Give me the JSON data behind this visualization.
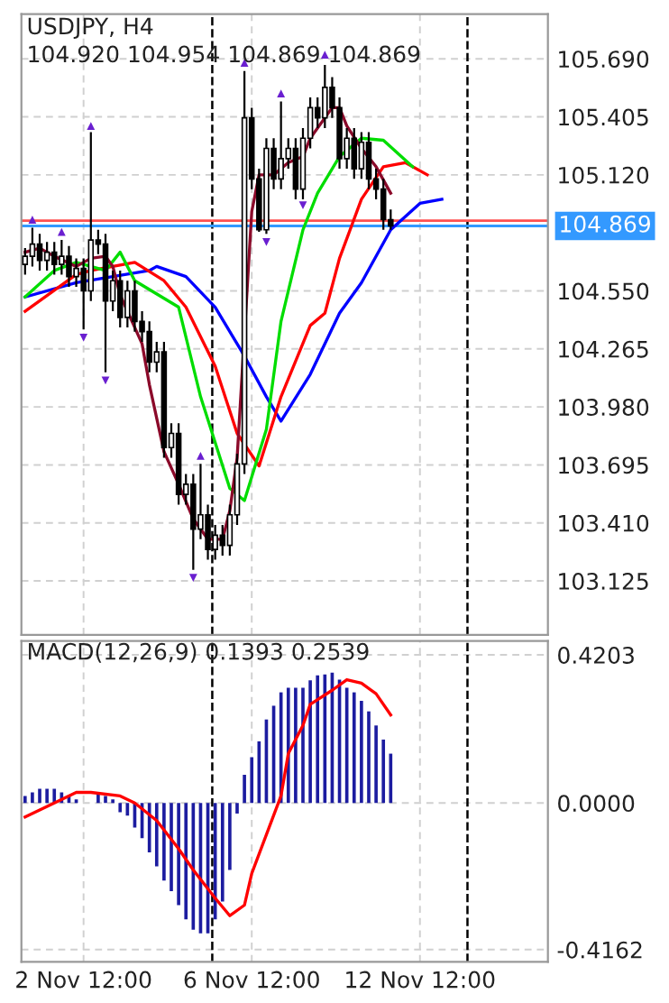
{
  "chart_data": [
    {
      "type": "candlestick",
      "title": "USDJPY, H4",
      "subtitle": "104.920 104.954 104.869 104.869",
      "color": "#000000",
      "categories": [
        null,
        null,
        null,
        null,
        null,
        null,
        null,
        null,
        null,
        null,
        null,
        null,
        null,
        null,
        null,
        null,
        null,
        null,
        null,
        null,
        null,
        null,
        null,
        null,
        null,
        null,
        null,
        null,
        null,
        null,
        null,
        null,
        null,
        null,
        null,
        null,
        null,
        null,
        null,
        null,
        null,
        null,
        null,
        null,
        null,
        null,
        null,
        null,
        null,
        null,
        null,
        null,
        null,
        null,
        null,
        null,
        null,
        null,
        null,
        null,
        null,
        null,
        null,
        null,
        null,
        null,
        null,
        null,
        null,
        null,
        null,
        null
      ],
      "ohlc": [
        [
          104.68,
          104.76,
          104.63,
          104.72
        ],
        [
          104.72,
          104.86,
          104.67,
          104.78
        ],
        [
          104.78,
          104.83,
          104.65,
          104.7
        ],
        [
          104.7,
          104.79,
          104.65,
          104.74
        ],
        [
          104.74,
          104.79,
          104.63,
          104.68
        ],
        [
          104.68,
          104.8,
          104.63,
          104.72
        ],
        [
          104.72,
          104.77,
          104.57,
          104.62
        ],
        [
          104.62,
          104.71,
          104.57,
          104.66
        ],
        [
          104.66,
          104.71,
          104.36,
          104.55
        ],
        [
          104.55,
          105.33,
          104.5,
          104.8
        ],
        [
          104.8,
          104.85,
          104.73,
          104.78
        ],
        [
          104.78,
          104.83,
          104.15,
          104.5
        ],
        [
          104.5,
          104.65,
          104.45,
          104.6
        ],
        [
          104.6,
          104.65,
          104.37,
          104.42
        ],
        [
          104.42,
          104.6,
          104.37,
          104.55
        ],
        [
          104.55,
          104.6,
          104.35,
          104.4
        ],
        [
          104.4,
          104.45,
          104.3,
          104.35
        ],
        [
          104.35,
          104.4,
          104.15,
          104.2
        ],
        [
          104.2,
          104.3,
          104.15,
          104.25
        ],
        [
          104.25,
          104.3,
          103.73,
          103.78
        ],
        [
          103.78,
          103.9,
          103.73,
          103.85
        ],
        [
          103.85,
          103.9,
          103.5,
          103.55
        ],
        [
          103.55,
          103.65,
          103.5,
          103.6
        ],
        [
          103.6,
          103.65,
          103.18,
          103.38
        ],
        [
          103.38,
          103.7,
          103.33,
          103.45
        ],
        [
          103.45,
          103.5,
          103.23,
          103.28
        ],
        [
          103.28,
          103.4,
          103.23,
          103.35
        ],
        [
          103.35,
          103.4,
          103.25,
          103.3
        ],
        [
          103.3,
          103.5,
          103.25,
          103.45
        ],
        [
          103.45,
          103.75,
          103.4,
          103.7
        ],
        [
          103.7,
          105.63,
          103.65,
          105.4
        ],
        [
          105.4,
          105.45,
          105.05,
          105.1
        ],
        [
          105.1,
          105.15,
          104.84,
          104.85
        ],
        [
          104.85,
          105.3,
          104.83,
          105.25
        ],
        [
          105.25,
          105.3,
          105.05,
          105.1
        ],
        [
          105.1,
          105.48,
          105.05,
          105.2
        ],
        [
          105.2,
          105.3,
          105.15,
          105.25
        ],
        [
          105.25,
          105.3,
          105.0,
          105.05
        ],
        [
          105.05,
          105.35,
          105.0,
          105.3
        ],
        [
          105.3,
          105.5,
          105.25,
          105.45
        ],
        [
          105.45,
          105.5,
          105.35,
          105.4
        ],
        [
          105.4,
          105.66,
          105.35,
          105.55
        ],
        [
          105.55,
          105.6,
          105.4,
          105.45
        ],
        [
          105.45,
          105.5,
          105.15,
          105.2
        ],
        [
          105.2,
          105.35,
          105.15,
          105.3
        ],
        [
          105.3,
          105.35,
          105.1,
          105.15
        ],
        [
          105.15,
          105.33,
          105.1,
          105.28
        ],
        [
          105.28,
          105.33,
          105.05,
          105.1
        ],
        [
          105.1,
          105.15,
          105.0,
          105.05
        ],
        [
          105.05,
          105.1,
          104.85,
          104.9
        ],
        [
          104.9,
          104.95,
          104.85,
          104.869
        ],
        null,
        null,
        null,
        null,
        null,
        null,
        null,
        null,
        null,
        null,
        null,
        null,
        null,
        null,
        null,
        null,
        null,
        null,
        null,
        null,
        null
      ],
      "series": [
        {
          "type": "line",
          "color": "#0000ff",
          "values": [
            104.52,
            null,
            null,
            null,
            null,
            null,
            null,
            104.59,
            null,
            null,
            null,
            null,
            104.62,
            null,
            null,
            null,
            null,
            104.65,
            104.67,
            null,
            null,
            null,
            104.62,
            null,
            null,
            null,
            104.47,
            null,
            null,
            null,
            104.23,
            null,
            null,
            104.03,
            null,
            103.91,
            null,
            null,
            null,
            104.14,
            null,
            null,
            null,
            104.44,
            null,
            null,
            104.59,
            null,
            null,
            null,
            104.85,
            null,
            null,
            null,
            104.98,
            null,
            null,
            105.0,
            null,
            null,
            null,
            null,
            null,
            null,
            null,
            null,
            null,
            null,
            null,
            null,
            null,
            null
          ]
        },
        {
          "type": "line",
          "color": "#ff0000",
          "values": [
            104.45,
            null,
            null,
            null,
            null,
            null,
            null,
            104.63,
            null,
            104.65,
            null,
            null,
            104.67,
            null,
            null,
            104.69,
            null,
            null,
            null,
            104.6,
            null,
            null,
            104.47,
            null,
            null,
            null,
            104.18,
            null,
            null,
            103.85,
            null,
            null,
            103.69,
            null,
            null,
            104.03,
            null,
            null,
            null,
            104.38,
            null,
            104.44,
            null,
            104.71,
            null,
            null,
            105.0,
            null,
            null,
            105.16,
            null,
            null,
            105.18,
            null,
            null,
            105.12,
            null,
            null,
            null,
            null,
            null,
            null,
            null,
            null,
            null,
            null,
            null,
            null,
            null,
            null,
            null,
            null
          ]
        },
        {
          "type": "line",
          "color": "#00dd00",
          "values": [
            104.52,
            null,
            null,
            null,
            104.65,
            null,
            null,
            104.69,
            null,
            null,
            null,
            104.65,
            null,
            104.74,
            null,
            104.6,
            null,
            null,
            null,
            null,
            null,
            104.47,
            null,
            null,
            104.03,
            null,
            null,
            null,
            103.58,
            null,
            103.52,
            null,
            null,
            103.87,
            null,
            104.4,
            null,
            null,
            104.85,
            null,
            105.03,
            null,
            null,
            105.21,
            null,
            null,
            105.3,
            null,
            null,
            105.29,
            null,
            null,
            null,
            105.16,
            null,
            null,
            null,
            null,
            null,
            null,
            null,
            null,
            null,
            null,
            null,
            null,
            null,
            null,
            null,
            null,
            null,
            null
          ]
        },
        {
          "type": "line",
          "color": "#8b0a2a",
          "values": [
            104.74,
            null,
            104.76,
            null,
            104.72,
            null,
            null,
            104.67,
            null,
            104.71,
            null,
            104.72,
            104.67,
            104.53,
            null,
            null,
            104.29,
            104.09,
            null,
            103.76,
            null,
            103.6,
            null,
            103.43,
            null,
            103.33,
            null,
            103.33,
            103.47,
            103.73,
            null,
            104.94,
            105.12,
            null,
            105.12,
            null,
            105.18,
            null,
            105.21,
            105.3,
            null,
            null,
            105.45,
            105.45,
            105.36,
            null,
            105.25,
            null,
            105.16,
            null,
            105.03,
            null,
            null,
            null,
            null,
            null,
            null,
            null,
            null,
            null,
            null,
            null,
            null,
            null,
            null,
            null,
            null,
            null,
            null,
            null,
            null,
            null
          ]
        },
        {
          "type": "scatter",
          "marker": "triangle",
          "color": "#6a1fd0",
          "values": [
            null,
            104.9,
            null,
            null,
            null,
            104.84,
            null,
            null,
            null,
            105.36,
            null,
            null,
            null,
            null,
            null,
            null,
            null,
            null,
            null,
            null,
            null,
            null,
            null,
            null,
            103.74,
            null,
            null,
            null,
            null,
            null,
            105.67,
            null,
            null,
            null,
            null,
            105.52,
            null,
            null,
            null,
            null,
            null,
            105.71,
            null,
            null,
            null,
            null,
            null,
            null,
            null,
            null,
            null,
            null,
            null,
            null,
            null,
            null,
            null,
            null,
            null,
            null,
            null,
            null,
            null,
            null,
            null,
            null,
            null,
            null,
            null,
            null,
            null,
            null
          ]
        },
        {
          "type": "scatter",
          "marker": "triangle_down",
          "color": "#6a1fd0",
          "values": [
            null,
            null,
            null,
            null,
            null,
            null,
            null,
            null,
            104.32,
            null,
            null,
            104.11,
            null,
            null,
            null,
            null,
            null,
            null,
            null,
            null,
            null,
            null,
            null,
            103.14,
            null,
            null,
            null,
            null,
            null,
            null,
            null,
            null,
            null,
            104.79,
            null,
            null,
            null,
            null,
            104.97,
            null,
            null,
            null,
            null,
            null,
            null,
            null,
            null,
            null,
            null,
            null,
            null,
            null,
            null,
            null,
            null,
            null,
            null,
            null,
            null,
            null,
            null,
            null,
            null,
            null,
            null,
            null,
            null,
            null,
            null,
            null,
            null,
            null
          ]
        }
      ],
      "ylim": [
        102.86,
        105.91
      ],
      "yticks": [
        {
          "value": 103.125,
          "label": "103.125"
        },
        {
          "value": 103.41,
          "label": "103.410"
        },
        {
          "value": 103.695,
          "label": "103.695"
        },
        {
          "value": 103.98,
          "label": "103.980"
        },
        {
          "value": 104.265,
          "label": "104.265"
        },
        {
          "value": 104.55,
          "label": "104.550"
        },
        {
          "value": 105.12,
          "label": "105.120"
        },
        {
          "value": 105.405,
          "label": "105.405"
        },
        {
          "value": 105.69,
          "label": "105.690"
        }
      ],
      "ref_lines": [
        {
          "axis": "y",
          "value": 104.895,
          "color": "#ff5050"
        },
        {
          "axis": "y",
          "value": 104.869,
          "label": "104.869",
          "color": "#3399ff"
        }
      ],
      "grid": true,
      "tick_labels": "y"
    },
    {
      "type": "bar",
      "title": "MACD(12,26,9) 0.1393 0.2539",
      "categories": [
        null,
        null,
        null,
        null,
        null,
        null,
        null,
        null,
        "2 Nov 12:00",
        null,
        null,
        null,
        null,
        null,
        null,
        null,
        null,
        null,
        null,
        null,
        null,
        null,
        null,
        null,
        null,
        null,
        null,
        null,
        null,
        null,
        null,
        "6 Nov 12:00",
        null,
        null,
        null,
        null,
        null,
        null,
        null,
        null,
        null,
        null,
        null,
        null,
        null,
        null,
        null,
        null,
        null,
        null,
        null,
        null,
        null,
        null,
        "12 Nov 12:00",
        null,
        null,
        null,
        null,
        null,
        null,
        null,
        null,
        null,
        null,
        null,
        null,
        null,
        null,
        null,
        null,
        null
      ],
      "series": [
        {
          "type": "bar",
          "color": "#1c1ca0",
          "values": [
            0.02,
            0.03,
            0.04,
            0.04,
            0.04,
            0.03,
            0.02,
            0.01,
            0.0,
            0.0,
            0.03,
            0.02,
            0.01,
            -0.026,
            -0.036,
            -0.07,
            -0.1,
            -0.14,
            -0.18,
            -0.22,
            -0.25,
            -0.29,
            -0.33,
            -0.36,
            -0.37,
            -0.37,
            -0.33,
            -0.28,
            -0.19,
            -0.03,
            0.08,
            0.13,
            0.175,
            0.237,
            0.276,
            0.314,
            0.327,
            0.327,
            0.327,
            0.348,
            0.362,
            0.365,
            0.37,
            0.35,
            0.327,
            0.314,
            0.29,
            0.26,
            0.22,
            0.18,
            0.14,
            null,
            null,
            null,
            null,
            null,
            null,
            null,
            null,
            null,
            null,
            null,
            null,
            null,
            null,
            null,
            null,
            null,
            null,
            null,
            null,
            null
          ]
        },
        {
          "type": "line",
          "color": "#ff0000",
          "values": [
            -0.04,
            null,
            null,
            null,
            0.0,
            null,
            null,
            0.03,
            null,
            0.03,
            null,
            null,
            null,
            0.02,
            null,
            0.0,
            null,
            null,
            -0.05,
            null,
            null,
            -0.13,
            null,
            -0.19,
            null,
            null,
            -0.27,
            null,
            -0.32,
            null,
            -0.29,
            -0.2,
            null,
            -0.09,
            null,
            0.02,
            0.14,
            null,
            0.22,
            0.28,
            null,
            null,
            0.32,
            null,
            0.35,
            null,
            0.34,
            null,
            0.31,
            null,
            0.25,
            null,
            null,
            null,
            null,
            null,
            null,
            null,
            null,
            null,
            null,
            null,
            null,
            null,
            null,
            null,
            null,
            null,
            null,
            null,
            null,
            null
          ]
        }
      ],
      "ylim": [
        -0.451,
        0.46
      ],
      "yticks": [
        {
          "value": 0.4203,
          "label": "0.4203"
        },
        {
          "value": 0,
          "label": "0.0000"
        },
        {
          "value": -0.4162,
          "label": "-0.4162"
        }
      ],
      "grid": true
    }
  ]
}
